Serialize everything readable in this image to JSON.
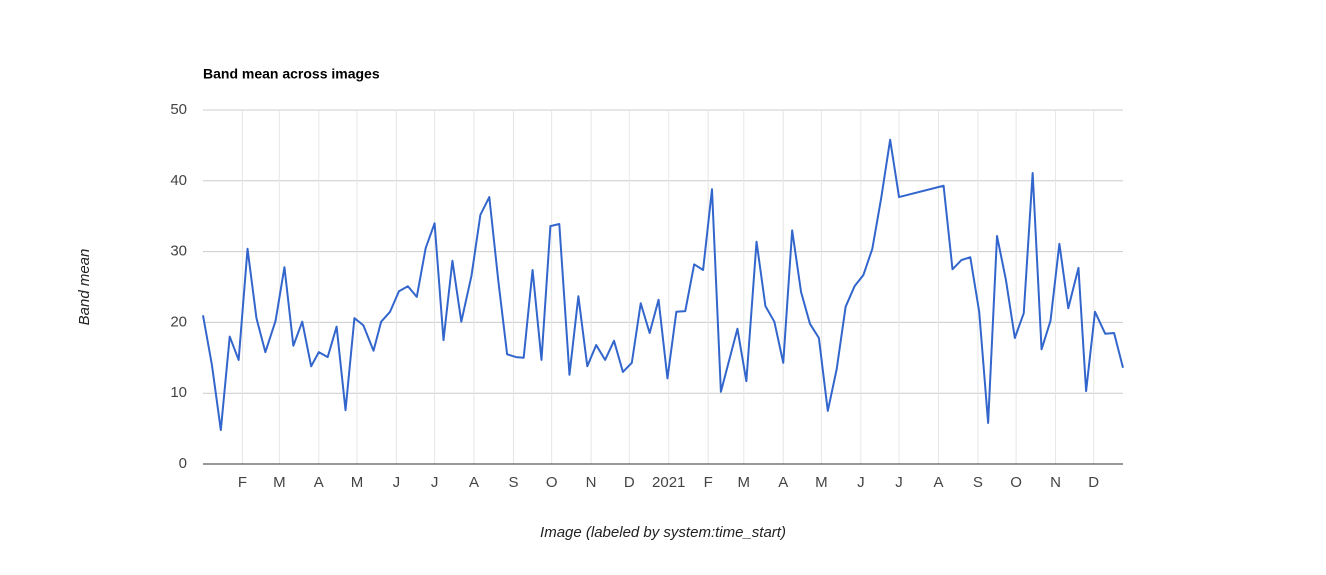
{
  "chart_data": {
    "type": "line",
    "title": "Band mean across images",
    "y_label": "Band mean",
    "x_label": "Image (labeled by system:time_start)",
    "color": "#3366cc",
    "grid": true,
    "xlim": [
      0,
      723
    ],
    "ylim": [
      0,
      50
    ],
    "yticks": [
      0,
      10,
      20,
      30,
      40,
      50
    ],
    "xticks": [
      {
        "value": 31,
        "label": "F"
      },
      {
        "value": 60,
        "label": "M"
      },
      {
        "value": 91,
        "label": "A"
      },
      {
        "value": 121,
        "label": "M"
      },
      {
        "value": 152,
        "label": "J"
      },
      {
        "value": 182,
        "label": "J"
      },
      {
        "value": 213,
        "label": "A"
      },
      {
        "value": 244,
        "label": "S"
      },
      {
        "value": 274,
        "label": "O"
      },
      {
        "value": 305,
        "label": "N"
      },
      {
        "value": 335,
        "label": "D"
      },
      {
        "value": 366,
        "label": "2021"
      },
      {
        "value": 397,
        "label": "F"
      },
      {
        "value": 425,
        "label": "M"
      },
      {
        "value": 456,
        "label": "A"
      },
      {
        "value": 486,
        "label": "M"
      },
      {
        "value": 517,
        "label": "J"
      },
      {
        "value": 547,
        "label": "J"
      },
      {
        "value": 578,
        "label": "A"
      },
      {
        "value": 609,
        "label": "S"
      },
      {
        "value": 639,
        "label": "O"
      },
      {
        "value": 670,
        "label": "N"
      },
      {
        "value": 700,
        "label": "D"
      }
    ],
    "x": [
      0,
      7,
      14,
      21,
      28,
      35,
      42,
      49,
      57,
      64,
      71,
      78,
      85,
      91,
      98,
      105,
      112,
      119,
      126,
      134,
      140,
      147,
      154,
      161,
      168,
      175,
      182,
      189,
      196,
      203,
      211,
      218,
      225,
      232,
      239,
      246,
      252,
      259,
      266,
      273,
      280,
      288,
      295,
      302,
      309,
      316,
      323,
      330,
      337,
      344,
      351,
      358,
      365,
      372,
      379,
      386,
      393,
      400,
      407,
      420,
      427,
      435,
      442,
      449,
      456,
      463,
      470,
      477,
      484,
      491,
      498,
      505,
      512,
      519,
      526,
      533,
      540,
      547,
      582,
      589,
      596,
      603,
      610,
      617,
      624,
      631,
      638,
      645,
      652,
      659,
      666,
      673,
      680,
      688,
      694,
      701,
      709,
      716,
      723
    ],
    "values": [
      21.0,
      14,
      4.8,
      18,
      14.7,
      30.4,
      20.6,
      15.8,
      20.2,
      27.8,
      16.7,
      20.1,
      13.8,
      15.8,
      15.1,
      19.4,
      7.6,
      20.6,
      19.6,
      16,
      20.1,
      21.5,
      24.4,
      25.1,
      23.6,
      30.5,
      34.0,
      17.5,
      28.7,
      20.1,
      26.6,
      35.2,
      37.7,
      26,
      15.5,
      15.1,
      15,
      27.4,
      14.7,
      33.6,
      33.9,
      12.6,
      23.7,
      13.8,
      16.8,
      14.7,
      17.4,
      13,
      14.3,
      22.7,
      18.5,
      23.2,
      12.1,
      21.5,
      21.6,
      28.2,
      27.4,
      38.8,
      10.2,
      19.1,
      11.7,
      31.4,
      22.3,
      20.1,
      14.3,
      33,
      24.3,
      19.8,
      17.8,
      7.5,
      13.4,
      22.2,
      25.1,
      26.7,
      30.4,
      37.6,
      45.8,
      37.7,
      39.3,
      27.5,
      28.8,
      29.2,
      21.5,
      5.8,
      32.2,
      26,
      17.8,
      21.3,
      41.1,
      16.2,
      20.2,
      31.1,
      22,
      27.7,
      10.3,
      21.5,
      18.4,
      18.5,
      13.6
    ]
  }
}
